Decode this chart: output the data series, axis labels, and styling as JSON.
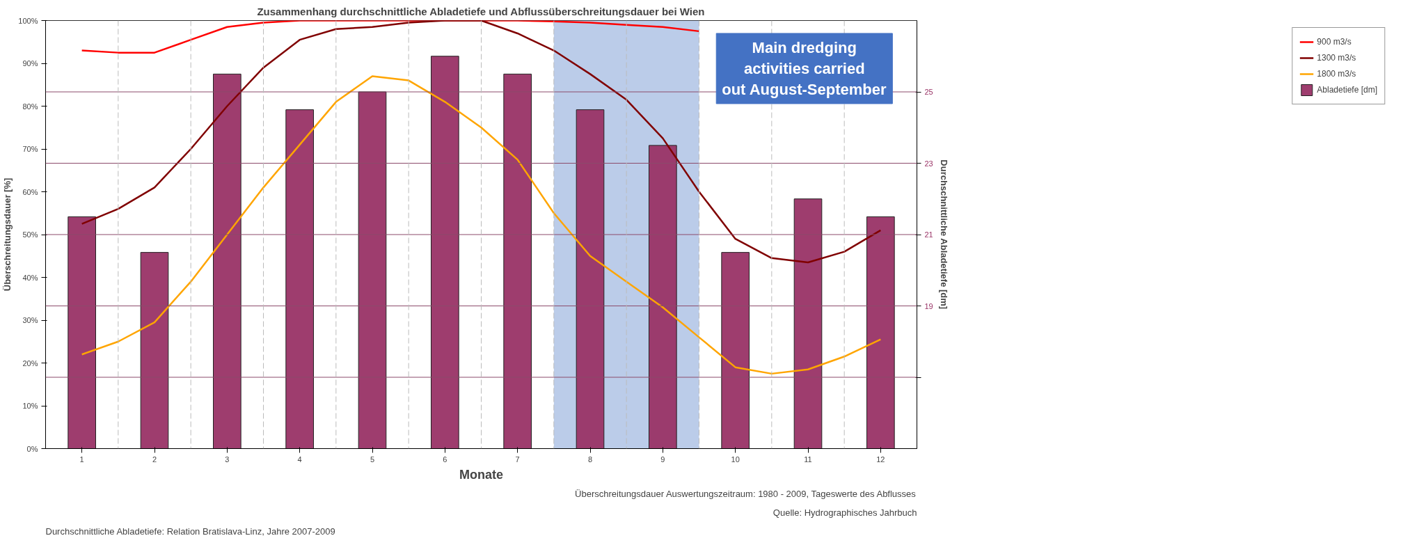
{
  "chart_data": {
    "type": "line",
    "title": "Zusammenhang durchschnittliche Abladetiefe und Abflussüberschreitungsdauer bei Wien",
    "xlabel": "Monate",
    "ylabel": "Überschreitungsdauer [%]",
    "y2label": "Durchschnittliche Abladetiefe [dm]",
    "x": [
      1,
      1.5,
      2,
      2.5,
      3,
      3.5,
      4,
      4.5,
      5,
      5.5,
      6,
      6.5,
      7,
      7.5,
      8,
      8.5,
      9,
      9.5,
      10,
      10.5,
      11,
      11.5,
      12
    ],
    "xlim": [
      0.5,
      12.5
    ],
    "xticks": [
      1,
      2,
      3,
      4,
      5,
      6,
      7,
      8,
      9,
      10,
      11,
      12
    ],
    "ylim": [
      0,
      100
    ],
    "yticks": [
      {
        "value": 0,
        "label": "0%"
      },
      {
        "value": 10,
        "label": "10%"
      },
      {
        "value": 20,
        "label": "20%"
      },
      {
        "value": 30,
        "label": "30%"
      },
      {
        "value": 40,
        "label": "40%"
      },
      {
        "value": 50,
        "label": "50%"
      },
      {
        "value": 60,
        "label": "60%"
      },
      {
        "value": 70,
        "label": "70%"
      },
      {
        "value": 80,
        "label": "80%"
      },
      {
        "value": 90,
        "label": "90%"
      },
      {
        "value": 100,
        "label": "100%"
      }
    ],
    "y2lim": [
      15,
      27
    ],
    "y2ticks": [
      {
        "value": 17,
        "label": null
      },
      19,
      21,
      23,
      25
    ],
    "grid": "y2",
    "legend": "right",
    "line_style": "solid",
    "series": [
      {
        "name": "900 m3/s",
        "color": "#ff0000",
        "values": [
          93,
          92.5,
          92.5,
          95.5,
          98.5,
          99.5,
          100,
          100,
          100,
          100,
          100,
          100,
          100,
          99.8,
          99.5,
          99,
          98.5,
          97.5,
          null,
          null,
          null,
          null,
          null
        ]
      },
      {
        "name": "1300 m3/s",
        "color": "#800000",
        "values": [
          52.5,
          56,
          61,
          70,
          80,
          89,
          95.5,
          98,
          98.5,
          99.5,
          100,
          100,
          97,
          93,
          87.5,
          81.5,
          72.5,
          60,
          49,
          44.5,
          43.5,
          46,
          51
        ]
      },
      {
        "name": "1800 m3/s",
        "color": "#ffa500",
        "values": [
          22,
          25,
          29.5,
          39,
          50,
          61,
          71,
          81,
          87,
          86,
          81,
          75,
          67.5,
          55,
          45,
          39,
          33,
          26,
          19,
          17.5,
          18.5,
          21.5,
          25.5
        ]
      },
      {
        "name": "Abladetiefe [dm]",
        "type": "bar",
        "axis": "y2",
        "color": "#993366",
        "x": [
          1,
          2,
          3,
          4,
          5,
          6,
          7,
          8,
          9,
          10,
          11,
          12
        ],
        "values": [
          21.5,
          20.5,
          25.5,
          24.5,
          25,
          26,
          25.5,
          24.5,
          23.5,
          20.5,
          22,
          21.5
        ]
      }
    ],
    "bands": [
      {
        "axis": "x",
        "from": 7.5,
        "to": 9.5,
        "color": "#8eaadb",
        "label": "Main dredging activities carried out August-September"
      }
    ],
    "annotations": [
      "Durchschnittliche Abladetiefe: Relation Bratislava-Linz, Jahre 2007-2009",
      "Quelle: Hydrographisches Jahrbuch",
      "Überschreitungsdauer Auswertungszeitraum: 1980 - 2009, Tageswerte des Abflusses"
    ]
  }
}
